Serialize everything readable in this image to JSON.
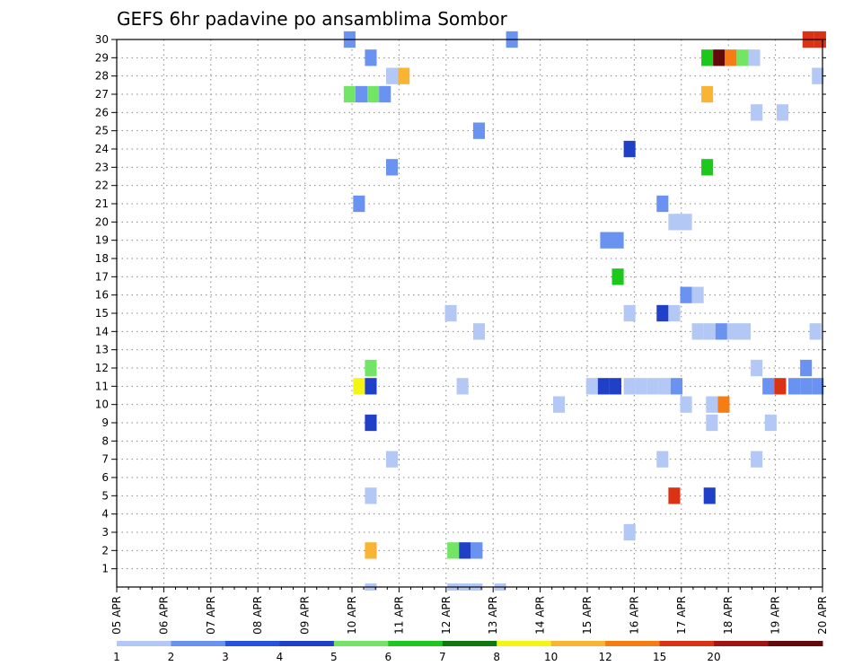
{
  "chart_data": {
    "type": "heatmap",
    "title": "GEFS 6hr padavine po ansamblima Sombor",
    "x_tick_labels": [
      "05 APR",
      "06 APR",
      "07 APR",
      "08 APR",
      "09 APR",
      "10 APR",
      "11 APR",
      "12 APR",
      "13 APR",
      "14 APR",
      "15 APR",
      "16 APR",
      "17 APR",
      "18 APR",
      "19 APR",
      "20 APR"
    ],
    "x_start_day": 5,
    "x_end_day": 20,
    "y_tick_labels": [
      "1",
      "2",
      "3",
      "4",
      "5",
      "6",
      "7",
      "8",
      "9",
      "10",
      "11",
      "12",
      "13",
      "14",
      "15",
      "16",
      "17",
      "18",
      "19",
      "20",
      "21",
      "22",
      "23",
      "24",
      "25",
      "26",
      "27",
      "28",
      "29",
      "30"
    ],
    "ylim": [
      0,
      30
    ],
    "grid": true,
    "legend_position": "bottom",
    "colorbar": {
      "boundaries": [
        "1",
        "2",
        "3",
        "4",
        "5",
        "6",
        "7",
        "8",
        "10",
        "12",
        "15",
        "20"
      ],
      "colors": [
        "#b4c8f5",
        "#6a92f0",
        "#2652df",
        "#2040c8",
        "#72e664",
        "#1cc81c",
        "#0f780f",
        "#f5f514",
        "#f8b432",
        "#f57d14",
        "#dc3214",
        "#a01414",
        "#640a0a"
      ]
    },
    "cells": [
      {
        "member": 30,
        "day": 9.95,
        "level": 1
      },
      {
        "member": 30,
        "day": 13.4,
        "level": 1
      },
      {
        "member": 30,
        "day": 19.7,
        "level": 10
      },
      {
        "member": 30,
        "day": 19.95,
        "level": 10
      },
      {
        "member": 29,
        "day": 10.4,
        "level": 1
      },
      {
        "member": 29,
        "day": 17.55,
        "level": 5
      },
      {
        "member": 29,
        "day": 17.8,
        "level": 12
      },
      {
        "member": 29,
        "day": 18.05,
        "level": 9
      },
      {
        "member": 29,
        "day": 18.3,
        "level": 4
      },
      {
        "member": 29,
        "day": 18.55,
        "level": 0
      },
      {
        "member": 28,
        "day": 10.85,
        "level": 0
      },
      {
        "member": 28,
        "day": 11.1,
        "level": 8
      },
      {
        "member": 28,
        "day": 19.9,
        "level": 0
      },
      {
        "member": 27,
        "day": 9.95,
        "level": 4
      },
      {
        "member": 27,
        "day": 10.2,
        "level": 1
      },
      {
        "member": 27,
        "day": 10.45,
        "level": 4
      },
      {
        "member": 27,
        "day": 10.7,
        "level": 1
      },
      {
        "member": 27,
        "day": 17.55,
        "level": 8
      },
      {
        "member": 26,
        "day": 18.6,
        "level": 0
      },
      {
        "member": 26,
        "day": 19.15,
        "level": 0
      },
      {
        "member": 25,
        "day": 12.7,
        "level": 1
      },
      {
        "member": 24,
        "day": 15.9,
        "level": 3
      },
      {
        "member": 23,
        "day": 10.85,
        "level": 1
      },
      {
        "member": 23,
        "day": 17.55,
        "level": 5
      },
      {
        "member": 21,
        "day": 10.15,
        "level": 1
      },
      {
        "member": 21,
        "day": 16.6,
        "level": 1
      },
      {
        "member": 20,
        "day": 16.85,
        "level": 0
      },
      {
        "member": 20,
        "day": 17.1,
        "level": 0
      },
      {
        "member": 19,
        "day": 15.4,
        "level": 1
      },
      {
        "member": 19,
        "day": 15.65,
        "level": 1
      },
      {
        "member": 17,
        "day": 15.65,
        "level": 5
      },
      {
        "member": 16,
        "day": 17.1,
        "level": 1
      },
      {
        "member": 16,
        "day": 17.35,
        "level": 0
      },
      {
        "member": 15,
        "day": 12.1,
        "level": 0
      },
      {
        "member": 15,
        "day": 15.9,
        "level": 0
      },
      {
        "member": 15,
        "day": 16.6,
        "level": 3
      },
      {
        "member": 15,
        "day": 16.85,
        "level": 0
      },
      {
        "member": 14,
        "day": 12.7,
        "level": 0
      },
      {
        "member": 14,
        "day": 17.35,
        "level": 0
      },
      {
        "member": 14,
        "day": 17.6,
        "level": 0
      },
      {
        "member": 14,
        "day": 17.85,
        "level": 1
      },
      {
        "member": 14,
        "day": 18.1,
        "level": 0
      },
      {
        "member": 14,
        "day": 18.35,
        "level": 0
      },
      {
        "member": 14,
        "day": 19.85,
        "level": 0
      },
      {
        "member": 12,
        "day": 10.4,
        "level": 4
      },
      {
        "member": 12,
        "day": 18.6,
        "level": 0
      },
      {
        "member": 12,
        "day": 19.65,
        "level": 1
      },
      {
        "member": 11,
        "day": 10.15,
        "level": 7
      },
      {
        "member": 11,
        "day": 10.4,
        "level": 3
      },
      {
        "member": 11,
        "day": 12.35,
        "level": 0
      },
      {
        "member": 11,
        "day": 15.1,
        "level": 0
      },
      {
        "member": 11,
        "day": 15.35,
        "level": 3
      },
      {
        "member": 11,
        "day": 15.6,
        "level": 3
      },
      {
        "member": 11,
        "day": 15.9,
        "level": 0
      },
      {
        "member": 11,
        "day": 16.15,
        "level": 0
      },
      {
        "member": 11,
        "day": 16.4,
        "level": 0
      },
      {
        "member": 11,
        "day": 16.65,
        "level": 0
      },
      {
        "member": 11,
        "day": 16.9,
        "level": 1
      },
      {
        "member": 11,
        "day": 18.85,
        "level": 1
      },
      {
        "member": 11,
        "day": 19.1,
        "level": 10
      },
      {
        "member": 11,
        "day": 19.4,
        "level": 1
      },
      {
        "member": 11,
        "day": 19.65,
        "level": 1
      },
      {
        "member": 11,
        "day": 19.9,
        "level": 1
      },
      {
        "member": 10,
        "day": 14.4,
        "level": 0
      },
      {
        "member": 10,
        "day": 17.1,
        "level": 0
      },
      {
        "member": 10,
        "day": 17.65,
        "level": 0
      },
      {
        "member": 10,
        "day": 17.9,
        "level": 9
      },
      {
        "member": 9,
        "day": 10.4,
        "level": 3
      },
      {
        "member": 9,
        "day": 17.65,
        "level": 0
      },
      {
        "member": 9,
        "day": 18.9,
        "level": 0
      },
      {
        "member": 7,
        "day": 10.85,
        "level": 0
      },
      {
        "member": 7,
        "day": 16.6,
        "level": 0
      },
      {
        "member": 7,
        "day": 18.6,
        "level": 0
      },
      {
        "member": 5,
        "day": 10.4,
        "level": 0
      },
      {
        "member": 5,
        "day": 16.85,
        "level": 10
      },
      {
        "member": 5,
        "day": 17.6,
        "level": 3
      },
      {
        "member": 3,
        "day": 15.9,
        "level": 0
      },
      {
        "member": 2,
        "day": 10.4,
        "level": 8
      },
      {
        "member": 2,
        "day": 12.15,
        "level": 4
      },
      {
        "member": 2,
        "day": 12.4,
        "level": 3
      },
      {
        "member": 2,
        "day": 12.65,
        "level": 1
      },
      {
        "member": 0,
        "day": 10.4,
        "level": 0
      },
      {
        "member": 0,
        "day": 12.15,
        "level": 0
      },
      {
        "member": 0,
        "day": 12.4,
        "level": 0
      },
      {
        "member": 0,
        "day": 12.65,
        "level": 0
      },
      {
        "member": 0,
        "day": 13.15,
        "level": 0
      }
    ]
  }
}
